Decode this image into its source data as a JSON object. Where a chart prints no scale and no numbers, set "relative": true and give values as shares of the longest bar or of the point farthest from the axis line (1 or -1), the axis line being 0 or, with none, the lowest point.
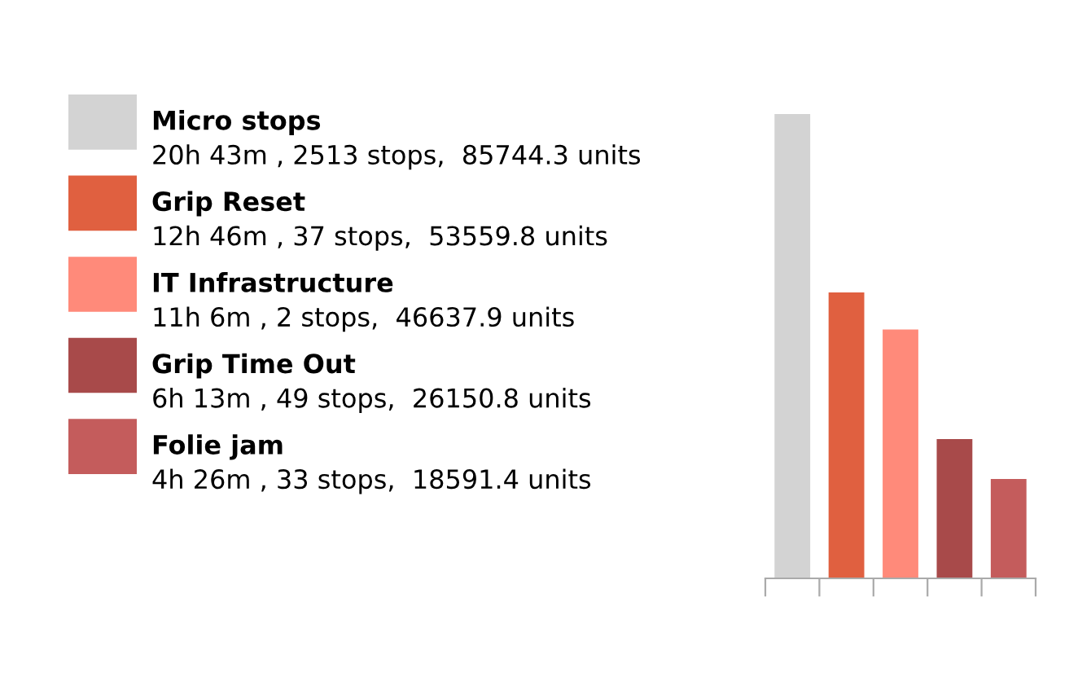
{
  "chart_data": {
    "type": "bar",
    "relative": true,
    "stacked": true,
    "categories": [
      null,
      null,
      null,
      null,
      null
    ],
    "series": [
      {
        "name": "Micro stops",
        "color": "#d3d3d3",
        "values": [
          1,
          null,
          null,
          null,
          null
        ]
      },
      {
        "name": "Grip Reset",
        "color": "#e06040",
        "values": [
          null,
          0.616,
          null,
          null,
          null
        ]
      },
      {
        "name": "IT Infrastructure",
        "color": "#ff8a7a",
        "values": [
          null,
          null,
          0.536,
          null,
          null
        ]
      },
      {
        "name": "Grip Time Out",
        "color": "#a84a4a",
        "values": [
          null,
          null,
          null,
          0.3,
          null
        ]
      },
      {
        "name": "Folie jam",
        "color": "#c45c5c",
        "values": [
          null,
          null,
          null,
          null,
          0.214
        ]
      }
    ],
    "annotations": [
      "20h 43m , 2513 stops,  85744.3 units",
      "12h 46m , 37 stops,  53559.8 units",
      "11h 6m , 2 stops,  46637.9 units",
      "6h 13m , 49 stops,  26150.8 units",
      "4h 26m , 33 stops,  18591.4 units"
    ],
    "legend": "left",
    "grid": false
  }
}
